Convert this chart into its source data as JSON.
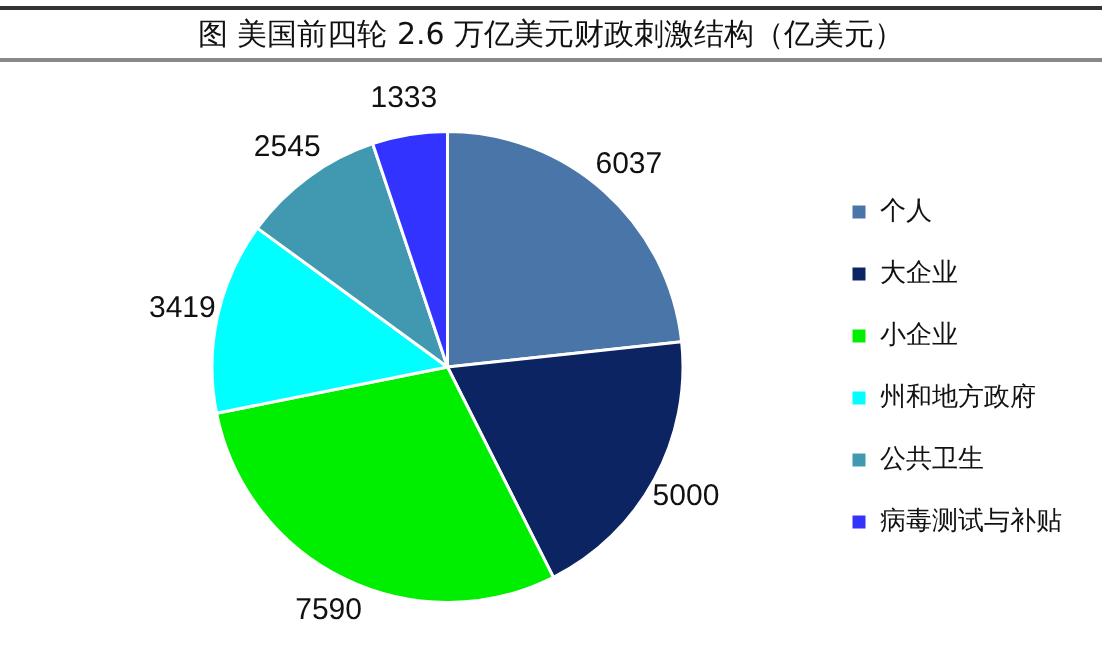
{
  "chart_data": {
    "type": "pie",
    "title": "图  美国前四轮 2.6 万亿美元财政刺激结构（亿美元）",
    "categories": [
      "个人",
      "大企业",
      "小企业",
      "州和地方政府",
      "公共卫生",
      "病毒测试与补贴"
    ],
    "values": [
      6037,
      5000,
      7590,
      3419,
      2545,
      1333
    ],
    "colors": [
      "#4a75a8",
      "#0c2461",
      "#00ee00",
      "#00ffff",
      "#4099b0",
      "#3333ff"
    ],
    "data_labels": true,
    "legend": "right"
  }
}
